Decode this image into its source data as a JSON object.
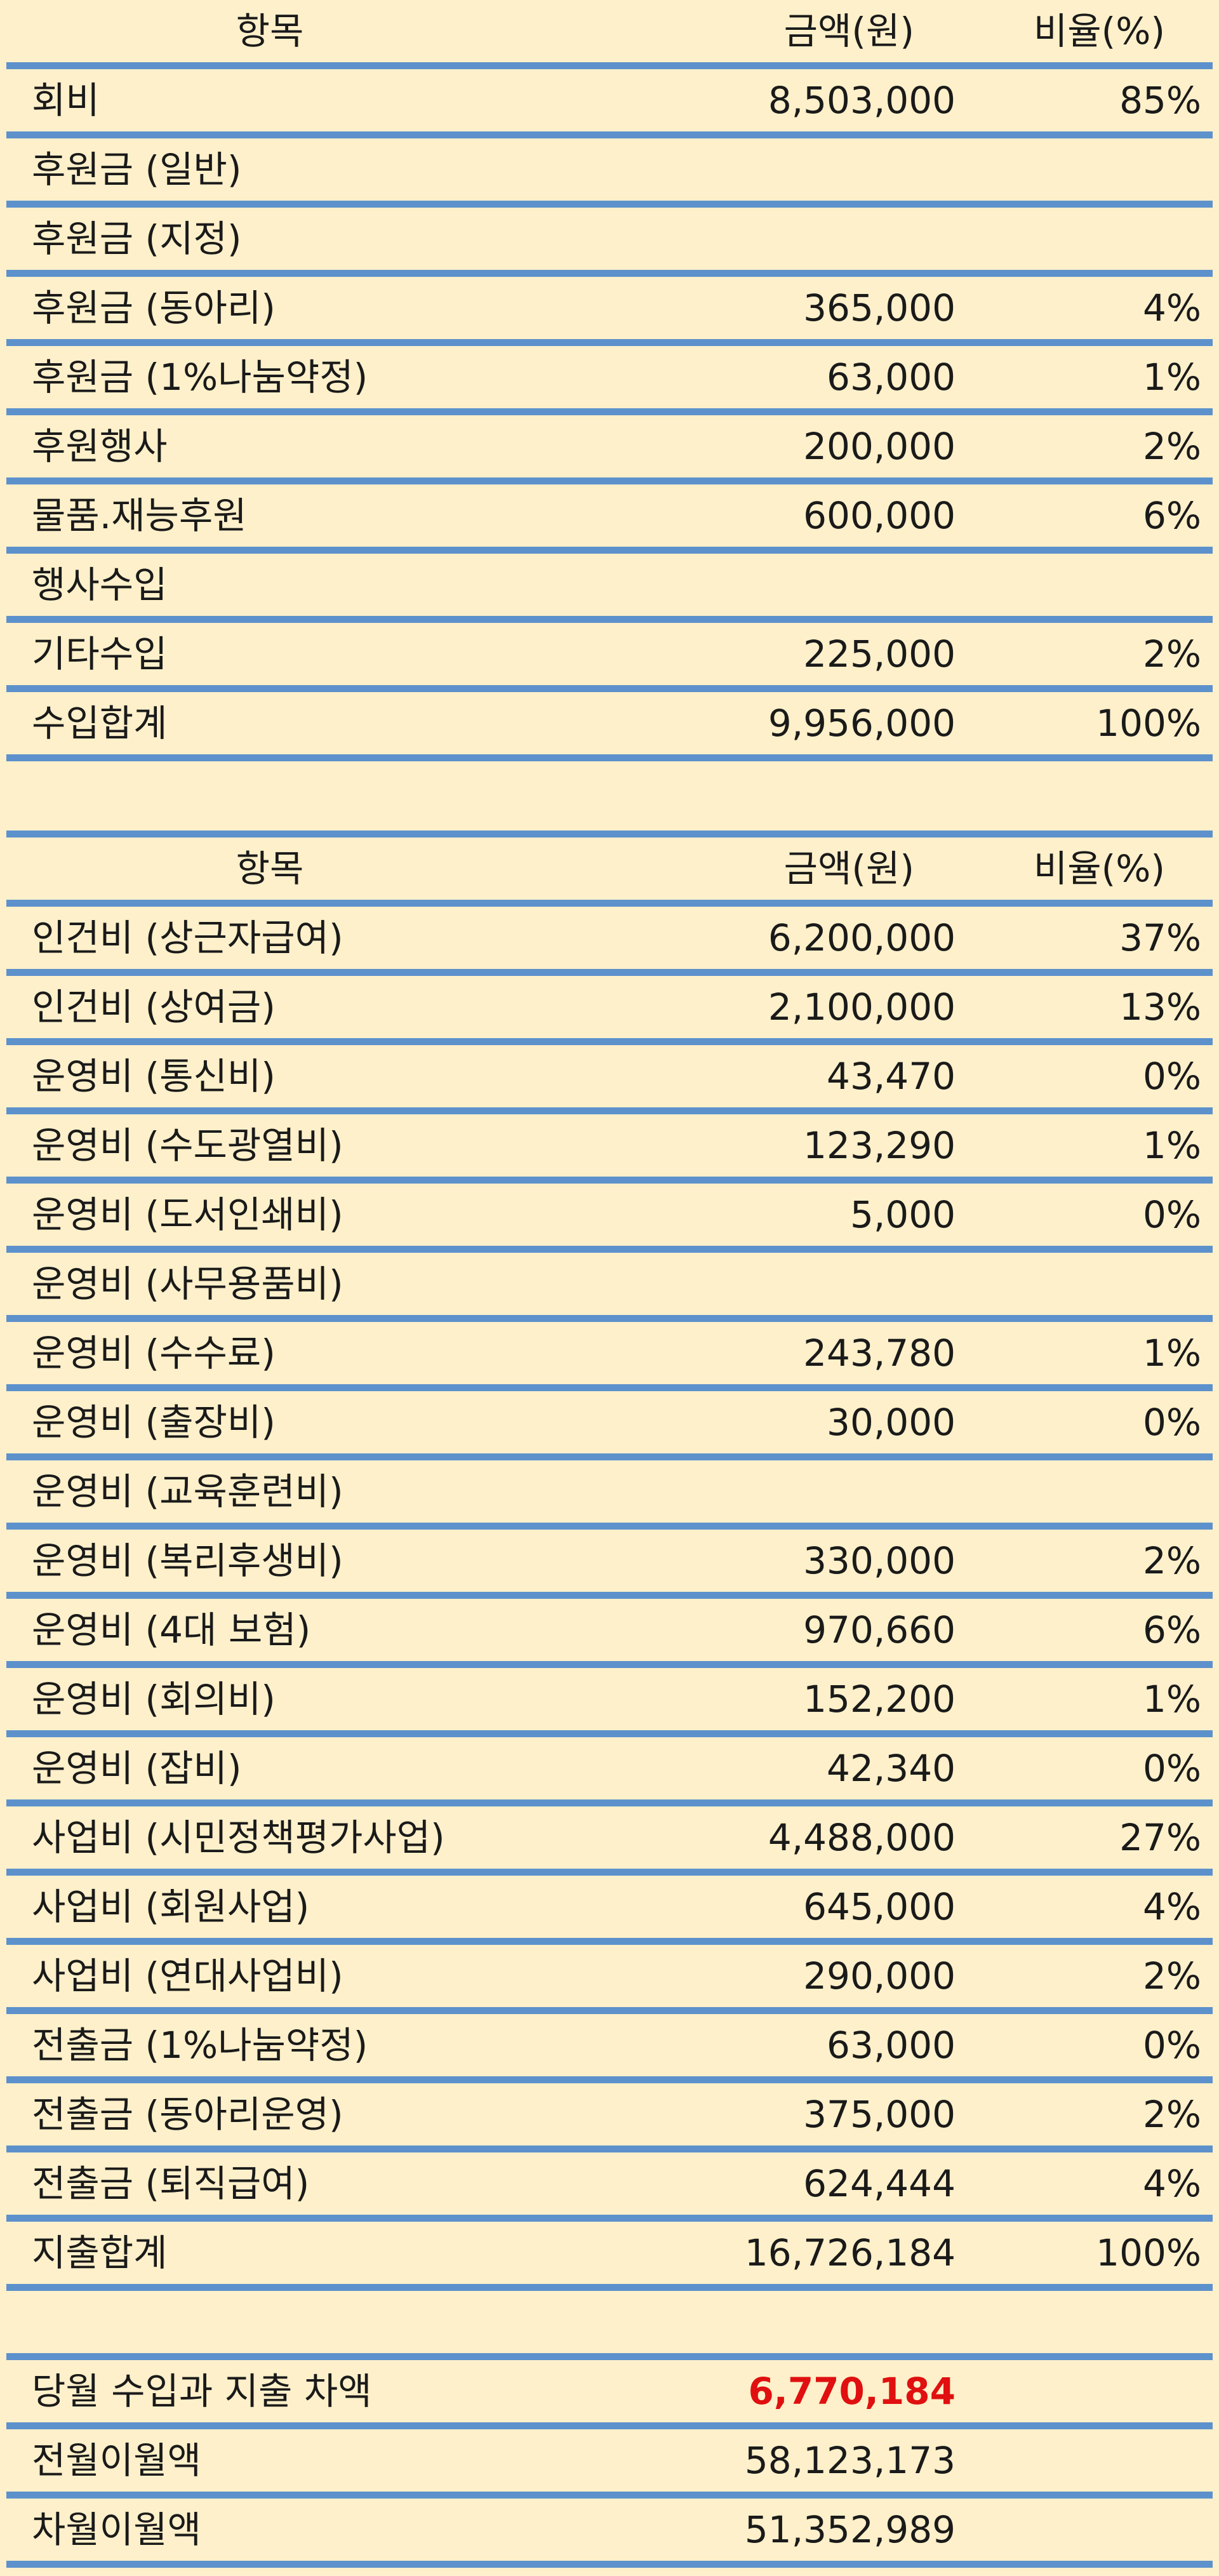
{
  "income": {
    "header": {
      "item": "항목",
      "amount": "금액(원)",
      "ratio": "비율(%)"
    },
    "rows": [
      {
        "item": "회비",
        "amount": "8,503,000",
        "ratio": "85%"
      },
      {
        "item": "후원금 (일반)",
        "amount": "",
        "ratio": ""
      },
      {
        "item": "후원금 (지정)",
        "amount": "",
        "ratio": ""
      },
      {
        "item": "후원금 (동아리)",
        "amount": "365,000",
        "ratio": "4%"
      },
      {
        "item": "후원금 (1%나눔약정)",
        "amount": "63,000",
        "ratio": "1%"
      },
      {
        "item": "후원행사",
        "amount": "200,000",
        "ratio": "2%"
      },
      {
        "item": "물품.재능후원",
        "amount": "600,000",
        "ratio": "6%"
      },
      {
        "item": "행사수입",
        "amount": "",
        "ratio": ""
      },
      {
        "item": "기타수입",
        "amount": "225,000",
        "ratio": "2%"
      },
      {
        "item": "수입합계",
        "amount": "9,956,000",
        "ratio": "100%"
      }
    ]
  },
  "expense": {
    "header": {
      "item": "항목",
      "amount": "금액(원)",
      "ratio": "비율(%)"
    },
    "rows": [
      {
        "item": "인건비 (상근자급여)",
        "amount": "6,200,000",
        "ratio": "37%"
      },
      {
        "item": "인건비 (상여금)",
        "amount": "2,100,000",
        "ratio": "13%"
      },
      {
        "item": "운영비 (통신비)",
        "amount": "43,470",
        "ratio": "0%"
      },
      {
        "item": "운영비 (수도광열비)",
        "amount": "123,290",
        "ratio": "1%"
      },
      {
        "item": "운영비 (도서인쇄비)",
        "amount": "5,000",
        "ratio": "0%"
      },
      {
        "item": "운영비 (사무용품비)",
        "amount": "",
        "ratio": ""
      },
      {
        "item": "운영비 (수수료)",
        "amount": "243,780",
        "ratio": "1%"
      },
      {
        "item": "운영비 (출장비)",
        "amount": "30,000",
        "ratio": "0%"
      },
      {
        "item": "운영비 (교육훈련비)",
        "amount": "",
        "ratio": ""
      },
      {
        "item": "운영비 (복리후생비)",
        "amount": "330,000",
        "ratio": "2%"
      },
      {
        "item": "운영비 (4대 보험)",
        "amount": "970,660",
        "ratio": "6%"
      },
      {
        "item": "운영비 (회의비)",
        "amount": "152,200",
        "ratio": "1%"
      },
      {
        "item": "운영비 (잡비)",
        "amount": "42,340",
        "ratio": "0%"
      },
      {
        "item": "사업비 (시민정책평가사업)",
        "amount": "4,488,000",
        "ratio": "27%"
      },
      {
        "item": "사업비 (회원사업)",
        "amount": "645,000",
        "ratio": "4%"
      },
      {
        "item": "사업비 (연대사업비)",
        "amount": "290,000",
        "ratio": "2%"
      },
      {
        "item": "전출금 (1%나눔약정)",
        "amount": "63,000",
        "ratio": "0%"
      },
      {
        "item": "전출금 (동아리운영)",
        "amount": "375,000",
        "ratio": "2%"
      },
      {
        "item": "전출금 (퇴직급여)",
        "amount": "624,444",
        "ratio": "4%"
      },
      {
        "item": "지출합계",
        "amount": "16,726,184",
        "ratio": "100%"
      }
    ]
  },
  "summary": {
    "rows": [
      {
        "item": "당월 수입과 지출 차액",
        "amount": "6,770,184",
        "ratio": ""
      },
      {
        "item": "전월이월액",
        "amount": "58,123,173",
        "ratio": ""
      },
      {
        "item": "차월이월액",
        "amount": "51,352,989",
        "ratio": ""
      }
    ],
    "highlight_color": "#e01010"
  },
  "colors": {
    "background": "#fdf0ca",
    "rule": "#5d91cc"
  }
}
